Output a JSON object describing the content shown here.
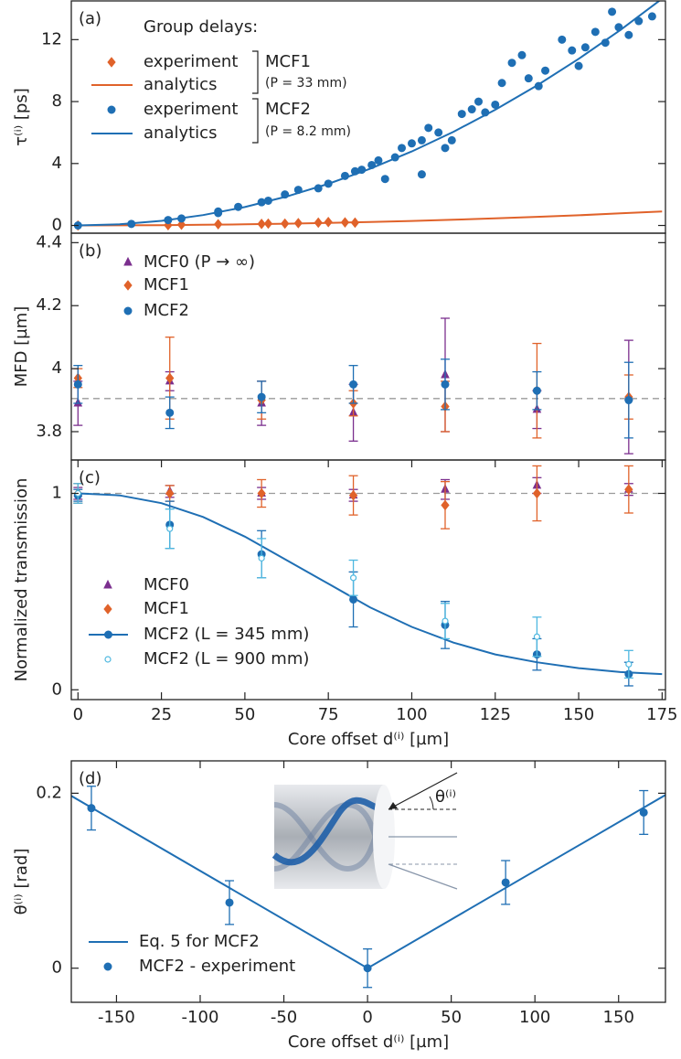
{
  "chart_data": [
    {
      "type": "scatter",
      "panel_label": "(a)",
      "y_label": "τ⁽ⁱ⁾ [ps]",
      "xlim": [
        -2,
        176
      ],
      "ylim": [
        -0.5,
        14.5
      ],
      "yticks": [
        0,
        4,
        8,
        12
      ],
      "legend_title": "Group delays:",
      "groups": [
        {
          "name": "MCF1",
          "note": "(P = 33 mm)"
        },
        {
          "name": "MCF2",
          "note": "(P = 8.2 mm)"
        }
      ],
      "series": [
        {
          "name": "experiment",
          "kind": "points",
          "marker": "diamond",
          "color": "#e0622a",
          "x": [
            0,
            27,
            31,
            42,
            55,
            57,
            62,
            66,
            72,
            75,
            80,
            83
          ],
          "values": [
            0,
            0.02,
            0.05,
            0.08,
            0.1,
            0.12,
            0.12,
            0.15,
            0.18,
            0.22,
            0.2,
            0.18
          ]
        },
        {
          "name": "analytics",
          "kind": "line",
          "color": "#e0622a",
          "x": [
            0,
            12.5,
            25,
            37.5,
            50,
            62.5,
            75,
            87.5,
            100,
            112.5,
            125,
            137.5,
            150,
            162.5,
            175
          ],
          "values": [
            0,
            0.005,
            0.018,
            0.041,
            0.074,
            0.115,
            0.165,
            0.225,
            0.29,
            0.37,
            0.46,
            0.56,
            0.66,
            0.78,
            0.9
          ]
        },
        {
          "name": "experiment",
          "kind": "points",
          "marker": "circle",
          "color": "#1f6fb4",
          "x": [
            0,
            16,
            27,
            31,
            42,
            42,
            48,
            55,
            57,
            62,
            66,
            72,
            75,
            80,
            83,
            85,
            88,
            90,
            92,
            95,
            97,
            100,
            103,
            103,
            105,
            108,
            110,
            112,
            115,
            118,
            120,
            122,
            125,
            127,
            130,
            133,
            135,
            138,
            140,
            145,
            148,
            150,
            152,
            155,
            158,
            160,
            162,
            165,
            168,
            172
          ],
          "values": [
            0,
            0.1,
            0.35,
            0.45,
            0.8,
            0.9,
            1.2,
            1.5,
            1.6,
            2.0,
            2.3,
            2.4,
            2.7,
            3.2,
            3.5,
            3.6,
            3.9,
            4.2,
            3.0,
            4.4,
            5.0,
            5.3,
            5.5,
            3.3,
            6.3,
            6.0,
            5.0,
            5.5,
            7.2,
            7.5,
            8.0,
            7.3,
            7.8,
            9.2,
            10.5,
            11.0,
            9.5,
            9.0,
            10.0,
            12.0,
            11.3,
            10.3,
            11.5,
            12.5,
            11.8,
            13.8,
            12.8,
            12.3,
            13.2,
            13.5
          ]
        },
        {
          "name": "analytics",
          "kind": "line",
          "color": "#1f6fb4",
          "x": [
            0,
            12.5,
            25,
            37.5,
            50,
            62.5,
            75,
            87.5,
            100,
            112.5,
            125,
            137.5,
            150,
            162.5,
            175
          ],
          "values": [
            0,
            0.075,
            0.3,
            0.67,
            1.19,
            1.87,
            2.69,
            3.66,
            4.78,
            6.05,
            7.47,
            9.04,
            10.76,
            12.62,
            14.64
          ]
        }
      ]
    },
    {
      "type": "scatter",
      "panel_label": "(b)",
      "y_label": "MFD [µm]",
      "xlim": [
        -2,
        176
      ],
      "ylim": [
        3.71,
        4.43
      ],
      "yticks": [
        {
          "value": 3.8,
          "label": "3.8"
        },
        {
          "value": 4,
          "label": "4"
        },
        {
          "value": 4.2,
          "label": "4.2"
        },
        {
          "value": 4.4,
          "label": "4.4"
        }
      ],
      "reference": 3.905,
      "series": [
        {
          "name": "MCF0 (P → ∞)",
          "kind": "points",
          "marker": "triangle",
          "color": "#7b2f8e",
          "x": [
            0,
            27.5,
            55,
            82.5,
            110,
            137.5,
            165
          ],
          "values": [
            3.89,
            3.96,
            3.89,
            3.86,
            3.98,
            3.87,
            3.91
          ],
          "errors": [
            0.07,
            0.03,
            0.07,
            0.09,
            0.18,
            0.06,
            0.18
          ]
        },
        {
          "name": "MCF1",
          "kind": "points",
          "marker": "diamond",
          "color": "#e0622a",
          "x": [
            0,
            27.5,
            55,
            82.5,
            110,
            137.5,
            165
          ],
          "values": [
            3.97,
            3.97,
            3.9,
            3.89,
            3.88,
            3.93,
            3.91
          ],
          "errors": [
            0.03,
            0.13,
            0.06,
            0.04,
            0.08,
            0.15,
            0.07
          ]
        },
        {
          "name": "MCF2",
          "kind": "points",
          "marker": "circle",
          "color": "#1f6fb4",
          "x": [
            0,
            27.5,
            55,
            82.5,
            110,
            137.5,
            165
          ],
          "values": [
            3.95,
            3.86,
            3.91,
            3.95,
            3.95,
            3.93,
            3.9
          ],
          "errors": [
            0.06,
            0.05,
            0.05,
            0.06,
            0.08,
            0.06,
            0.12
          ]
        }
      ]
    },
    {
      "type": "scatter",
      "panel_label": "(c)",
      "y_label": "Normalized transmission",
      "x_label": "Core offset d⁽ⁱ⁾ [µm]",
      "xlim": [
        -2,
        176
      ],
      "ylim": [
        -0.05,
        1.17
      ],
      "yticks": [
        0,
        1
      ],
      "xticks": [
        0,
        25,
        50,
        75,
        100,
        125,
        150,
        175
      ],
      "reference": 1,
      "series": [
        {
          "name": "MCF0",
          "kind": "points",
          "marker": "triangle",
          "color": "#7b2f8e",
          "x": [
            0,
            27.5,
            55,
            82.5,
            110,
            137.5,
            165
          ],
          "values": [
            1.0,
            1.01,
            1.0,
            0.99,
            1.02,
            1.04,
            1.02
          ],
          "errors": [
            0.03,
            0.03,
            0.03,
            0.03,
            0.05,
            0.04,
            0.03
          ]
        },
        {
          "name": "MCF1",
          "kind": "points",
          "marker": "diamond",
          "color": "#e0622a",
          "x": [
            0,
            27.5,
            55,
            82.5,
            110,
            137.5,
            165
          ],
          "values": [
            1.0,
            1.0,
            1.0,
            0.99,
            0.94,
            1.0,
            1.02
          ],
          "errors": [
            0.05,
            0.04,
            0.07,
            0.1,
            0.12,
            0.14,
            0.12
          ]
        },
        {
          "name": "MCF2 (L = 345 mm)",
          "kind": "points",
          "marker": "circle",
          "color": "#1f6fb4",
          "x": [
            0,
            27.5,
            55,
            82.5,
            110,
            137.5,
            165
          ],
          "values": [
            0.99,
            0.84,
            0.69,
            0.46,
            0.33,
            0.18,
            0.08
          ],
          "errors": [
            0.03,
            0.12,
            0.12,
            0.14,
            0.12,
            0.08,
            0.06
          ],
          "fit_x": [
            0,
            12.5,
            25,
            37.5,
            50,
            62.5,
            75,
            87.5,
            100,
            112.5,
            125,
            137.5,
            150,
            162.5,
            175
          ],
          "fit_values": [
            1.0,
            0.99,
            0.95,
            0.88,
            0.78,
            0.66,
            0.54,
            0.42,
            0.32,
            0.24,
            0.18,
            0.14,
            0.11,
            0.09,
            0.08
          ]
        },
        {
          "name": "MCF2 (L = 900 mm)",
          "kind": "points",
          "marker": "open-circle",
          "color": "#4fb8e0",
          "x": [
            0,
            27.5,
            55,
            82.5,
            110,
            137.5,
            165
          ],
          "values": [
            1.0,
            0.82,
            0.67,
            0.57,
            0.35,
            0.27,
            0.13
          ],
          "errors": [
            0.05,
            0.1,
            0.1,
            0.09,
            0.09,
            0.1,
            0.07
          ]
        }
      ]
    },
    {
      "type": "scatter",
      "panel_label": "(d)",
      "y_label": "θ⁽ⁱ⁾ [rad]",
      "x_label": "Core offset d⁽ⁱ⁾ [µm]",
      "annotation": "θ⁽ⁱ⁾",
      "xlim": [
        -177,
        178
      ],
      "ylim": [
        -0.039,
        0.237
      ],
      "yticks": [
        0,
        {
          "value": 0.2,
          "label": "0.2"
        }
      ],
      "xticks": [
        -150,
        -100,
        -50,
        0,
        50,
        100,
        150
      ],
      "series": [
        {
          "name": "Eq. 5 for MCF2",
          "kind": "line",
          "color": "#1f6fb4",
          "x": [
            -177,
            0,
            178
          ],
          "values": [
            0.197,
            0,
            0.198
          ]
        },
        {
          "name": "MCF2 - experiment",
          "kind": "points",
          "marker": "circle",
          "color": "#1f6fb4",
          "x": [
            -165,
            -82.5,
            0,
            82.5,
            165
          ],
          "values": [
            0.183,
            0.075,
            0,
            0.098,
            0.178
          ],
          "errors": [
            0.025,
            0.025,
            0.022,
            0.025,
            0.025
          ]
        }
      ]
    }
  ]
}
